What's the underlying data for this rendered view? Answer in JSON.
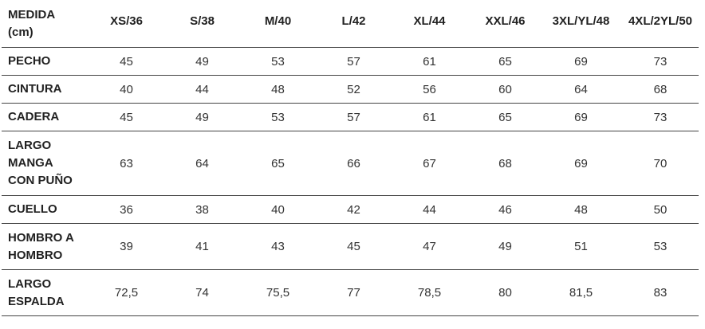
{
  "table": {
    "header": [
      "MEDIDA\n(cm)",
      "XS/36",
      "S/38",
      "M/40",
      "L/42",
      "XL/44",
      "XXL/46",
      "3XL/YL/48",
      "4XL/2YL/50"
    ],
    "rows": [
      [
        "PECHO",
        "45",
        "49",
        "53",
        "57",
        "61",
        "65",
        "69",
        "73"
      ],
      [
        "CINTURA",
        "40",
        "44",
        "48",
        "52",
        "56",
        "60",
        "64",
        "68"
      ],
      [
        "CADERA",
        "45",
        "49",
        "53",
        "57",
        "61",
        "65",
        "69",
        "73"
      ],
      [
        "LARGO\nMANGA\nCON PUÑO",
        "63",
        "64",
        "65",
        "66",
        "67",
        "68",
        "69",
        "70"
      ],
      [
        "CUELLO",
        "36",
        "38",
        "40",
        "42",
        "44",
        "46",
        "48",
        "50"
      ],
      [
        "HOMBRO A\nHOMBRO",
        "39",
        "41",
        "43",
        "45",
        "47",
        "49",
        "51",
        "53"
      ],
      [
        "LARGO\nESPALDA",
        "72,5",
        "74",
        "75,5",
        "77",
        "78,5",
        "80",
        "81,5",
        "83"
      ]
    ]
  }
}
